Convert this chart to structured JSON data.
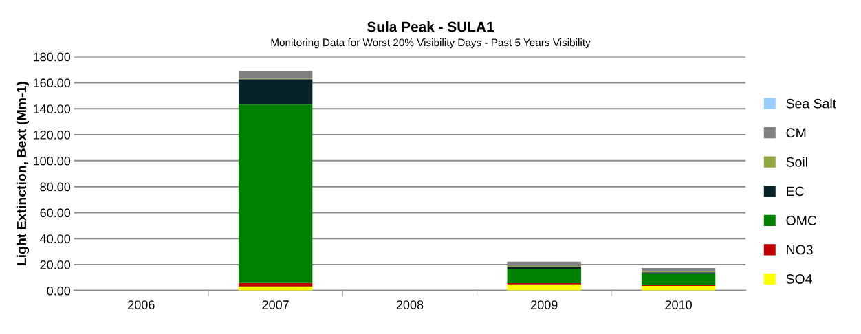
{
  "chart_data": {
    "type": "bar",
    "stacked": true,
    "title": "Sula Peak - SULA1",
    "subtitle": "Monitoring Data for Worst 20% Visibility Days - Past 5 Years Visibility",
    "ylabel": "Light Extinction, Bext (Mm-1)",
    "categories": [
      "2006",
      "2007",
      "2008",
      "2009",
      "2010"
    ],
    "series": [
      {
        "name": "SO4",
        "color": "#ffff00",
        "values": [
          null,
          3.2,
          null,
          4.8,
          3.6
        ]
      },
      {
        "name": "NO3",
        "color": "#c00000",
        "values": [
          null,
          2.7,
          null,
          0.9,
          0.7
        ]
      },
      {
        "name": "OMC",
        "color": "#008000",
        "values": [
          null,
          137.3,
          null,
          10.8,
          9.0
        ]
      },
      {
        "name": "EC",
        "color": "#072328",
        "values": [
          null,
          19.5,
          null,
          1.8,
          0.7
        ]
      },
      {
        "name": "Soil",
        "color": "#92a843",
        "values": [
          null,
          0.6,
          null,
          0.7,
          1.0
        ]
      },
      {
        "name": "CM",
        "color": "#808080",
        "values": [
          null,
          5.7,
          null,
          3.2,
          2.3
        ]
      },
      {
        "name": "Sea Salt",
        "color": "#99ccff",
        "values": [
          null,
          null,
          null,
          null,
          null
        ]
      }
    ],
    "ylim": [
      0,
      180
    ],
    "yticks": [
      {
        "value": 0,
        "label": "0.00"
      },
      {
        "value": 20,
        "label": "20.00"
      },
      {
        "value": 40,
        "label": "40.00"
      },
      {
        "value": 60,
        "label": "60.00"
      },
      {
        "value": 80,
        "label": "80.00"
      },
      {
        "value": 100,
        "label": "100.00"
      },
      {
        "value": 120,
        "label": "120.00"
      },
      {
        "value": 140,
        "label": "140.00"
      },
      {
        "value": 160,
        "label": "160.00"
      },
      {
        "value": 180,
        "label": "180.00"
      }
    ],
    "grid": "y",
    "legend": "right"
  }
}
